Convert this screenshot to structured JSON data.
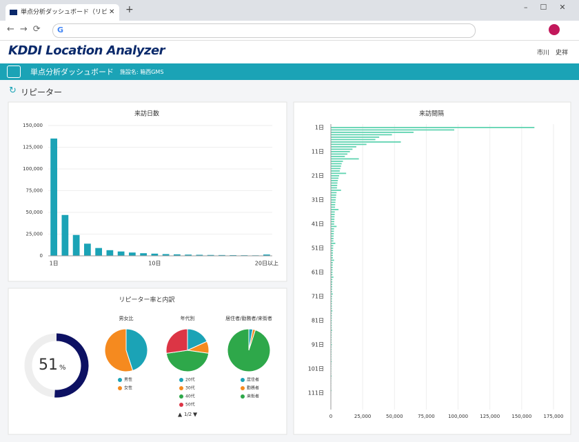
{
  "browser": {
    "tab_title": "単点分析ダッシュボード（リピーター）"
  },
  "header": {
    "logo": "KDDI Location Analyzer",
    "user": "市川　史祥"
  },
  "nav": {
    "title": "単点分析ダッシュボード",
    "facility": "施設名: 箱西GMS"
  },
  "section_title": "リピーター",
  "visit_days": {
    "type": "bar",
    "title": "来訪日数",
    "color": "#1ba3b6",
    "categories": [
      "1日",
      null,
      null,
      null,
      null,
      null,
      null,
      null,
      null,
      "10日",
      null,
      null,
      null,
      null,
      null,
      null,
      null,
      null,
      null,
      "20日以上"
    ],
    "values": [
      135000,
      47000,
      24000,
      14000,
      9000,
      6500,
      5000,
      3800,
      3000,
      2500,
      2000,
      1700,
      1400,
      1200,
      1000,
      900,
      800,
      700,
      600,
      1500
    ],
    "ylim": [
      0,
      150000
    ],
    "yticks": [
      0,
      {
        "value": 25000,
        "label": "25,000"
      },
      {
        "value": 50000,
        "label": "50,000"
      },
      {
        "value": 75000,
        "label": "75,000"
      },
      {
        "value": 100000,
        "label": "100,000"
      },
      {
        "value": 125000,
        "label": "125,000"
      },
      {
        "value": 150000,
        "label": "150,000"
      }
    ],
    "grid": true
  },
  "visit_interval": {
    "type": "hbar",
    "title": "来訪間隔",
    "color": "#5fd3b0",
    "categories": [
      "1日",
      null,
      null,
      null,
      null,
      null,
      null,
      null,
      null,
      null,
      "11日",
      null,
      null,
      null,
      null,
      null,
      null,
      null,
      null,
      null,
      "21日",
      null,
      null,
      null,
      null,
      null,
      null,
      null,
      null,
      null,
      "31日",
      null,
      null,
      null,
      null,
      null,
      null,
      null,
      null,
      null,
      "41日",
      null,
      null,
      null,
      null,
      null,
      null,
      null,
      null,
      null,
      "51日",
      null,
      null,
      null,
      null,
      null,
      null,
      null,
      null,
      null,
      "61日",
      null,
      null,
      null,
      null,
      null,
      null,
      null,
      null,
      null,
      "71日",
      null,
      null,
      null,
      null,
      null,
      null,
      null,
      null,
      null,
      "81日",
      null,
      null,
      null,
      null,
      null,
      null,
      null,
      null,
      null,
      "91日",
      null,
      null,
      null,
      null,
      null,
      null,
      null,
      null,
      null,
      "101日",
      null,
      null,
      null,
      null,
      null,
      null,
      null,
      null,
      null,
      "111日",
      null,
      null,
      null,
      null
    ],
    "values": [
      160000,
      97000,
      65000,
      48000,
      38000,
      35000,
      55000,
      28000,
      20000,
      17000,
      15000,
      13000,
      11000,
      22000,
      9500,
      8500,
      8000,
      7500,
      7000,
      12000,
      6500,
      6000,
      5500,
      5200,
      5000,
      4800,
      8000,
      4500,
      4200,
      4000,
      3800,
      3600,
      3400,
      3300,
      6000,
      3100,
      3000,
      2900,
      2800,
      2700,
      2600,
      4500,
      2500,
      2400,
      2300,
      2200,
      2100,
      2000,
      3500,
      1900,
      1800,
      1700,
      1650,
      1600,
      1550,
      2500,
      1500,
      1450,
      1400,
      1350,
      1300,
      1250,
      2000,
      1200,
      1150,
      1100,
      1050,
      1000,
      950,
      1500,
      900,
      880,
      860,
      840,
      820,
      800,
      1200,
      780,
      760,
      740,
      720,
      700,
      680,
      660,
      1000,
      640,
      620,
      600,
      580,
      560,
      800,
      540,
      520,
      500,
      480,
      460,
      460,
      700,
      440,
      420,
      400,
      380,
      360,
      600,
      350,
      340,
      330,
      320,
      310,
      500,
      300,
      290,
      280,
      270,
      260
    ],
    "xlim": [
      0,
      175000
    ],
    "xticks": [
      0,
      {
        "value": 25000,
        "label": "25,000"
      },
      {
        "value": 50000,
        "label": "50,000"
      },
      {
        "value": 75000,
        "label": "75,000"
      },
      {
        "value": 100000,
        "label": "100,000"
      },
      {
        "value": 125000,
        "label": "125,000"
      },
      {
        "value": 150000,
        "label": "150,000"
      },
      {
        "value": 175000,
        "label": "175,000"
      }
    ],
    "grid": true
  },
  "breakdown": {
    "title": "リピーター率と内訳",
    "rate": {
      "type": "donut",
      "value": 51,
      "unit": "%",
      "max": 100,
      "color": "#0d1163",
      "track_color": "#eeeeee"
    },
    "pies": [
      {
        "type": "pie",
        "title": "男女比",
        "categories": [
          "男性",
          "女性"
        ],
        "values": [
          45,
          55
        ],
        "colors": [
          "#1ba3b6",
          "#f58a1f"
        ]
      },
      {
        "type": "pie",
        "title": "年代別",
        "categories": [
          "20代",
          "30代",
          "40代",
          "50代"
        ],
        "values": [
          12,
          6,
          30,
          18
        ],
        "colors": [
          "#1ba3b6",
          "#f58a1f",
          "#2ea84a",
          "#dc3545"
        ],
        "legend_page": "1/2"
      },
      {
        "type": "pie",
        "title": "居住者/勤務者/来街者",
        "categories": [
          "居住者",
          "勤務者",
          "来街者"
        ],
        "values": [
          3,
          2,
          95
        ],
        "colors": [
          "#1ba3b6",
          "#f58a1f",
          "#2ea84a"
        ]
      }
    ]
  }
}
